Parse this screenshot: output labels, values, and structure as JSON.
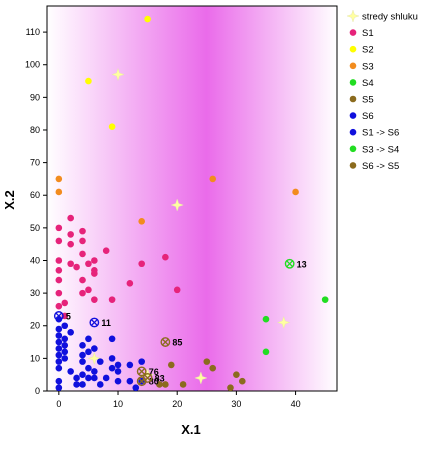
{
  "chart_data": {
    "type": "scatter",
    "title": "",
    "xlabel": "X.1",
    "ylabel": "X.2",
    "xlim": [
      -2,
      47
    ],
    "ylim": [
      0,
      118
    ],
    "x_ticks": [
      0,
      10,
      20,
      30,
      40
    ],
    "y_ticks": [
      0,
      10,
      20,
      30,
      40,
      50,
      60,
      70,
      80,
      90,
      100,
      110
    ],
    "legend_position": "right",
    "background": "magenta gradient",
    "series": [
      {
        "name": "stredy shluku",
        "marker": "star",
        "color": "#ffffa0",
        "points": [
          [
            10,
            97
          ],
          [
            20,
            57
          ],
          [
            38,
            21
          ],
          [
            24,
            4
          ],
          [
            15,
            5
          ],
          [
            6,
            10
          ]
        ]
      },
      {
        "name": "S1",
        "marker": "circle",
        "color": "#e6237a",
        "points": [
          [
            0,
            50
          ],
          [
            0,
            46
          ],
          [
            0,
            40
          ],
          [
            0,
            37
          ],
          [
            0,
            34
          ],
          [
            0,
            30
          ],
          [
            0,
            26
          ],
          [
            1,
            27
          ],
          [
            2,
            53
          ],
          [
            2,
            48
          ],
          [
            2,
            45
          ],
          [
            2,
            39
          ],
          [
            3,
            38
          ],
          [
            4,
            49
          ],
          [
            4,
            46
          ],
          [
            4,
            42
          ],
          [
            4,
            34
          ],
          [
            4,
            30
          ],
          [
            5,
            39
          ],
          [
            5,
            31
          ],
          [
            6,
            40
          ],
          [
            6,
            37
          ],
          [
            6,
            36
          ],
          [
            6,
            28
          ],
          [
            8,
            43
          ],
          [
            9,
            28
          ],
          [
            12,
            33
          ],
          [
            14,
            39
          ],
          [
            18,
            41
          ],
          [
            20,
            31
          ],
          [
            1,
            23
          ]
        ]
      },
      {
        "name": "S2",
        "marker": "circle",
        "color": "#ffff00",
        "points": [
          [
            15,
            114
          ],
          [
            5,
            95
          ],
          [
            9,
            81
          ]
        ]
      },
      {
        "name": "S3",
        "marker": "circle",
        "color": "#f28c1e",
        "points": [
          [
            0,
            65
          ],
          [
            0,
            61
          ],
          [
            14,
            52
          ],
          [
            26,
            65
          ],
          [
            40,
            61
          ]
        ]
      },
      {
        "name": "S4",
        "marker": "circle",
        "color": "#22dd22",
        "points": [
          [
            45,
            28
          ],
          [
            35,
            22
          ],
          [
            35,
            12
          ]
        ]
      },
      {
        "name": "S5",
        "marker": "circle",
        "color": "#8b6b1e",
        "points": [
          [
            17,
            2
          ],
          [
            18,
            2
          ],
          [
            19,
            8
          ],
          [
            21,
            2
          ],
          [
            25,
            9
          ],
          [
            26,
            7
          ],
          [
            29,
            1
          ],
          [
            30,
            5
          ],
          [
            31,
            3
          ]
        ]
      },
      {
        "name": "S6",
        "marker": "circle",
        "color": "#1010dd",
        "points": [
          [
            0,
            22
          ],
          [
            0,
            19
          ],
          [
            0,
            17
          ],
          [
            0,
            15
          ],
          [
            0,
            13
          ],
          [
            0,
            11
          ],
          [
            0,
            9
          ],
          [
            0,
            7
          ],
          [
            0,
            3
          ],
          [
            0,
            1
          ],
          [
            1,
            20
          ],
          [
            1,
            16
          ],
          [
            1,
            14
          ],
          [
            1,
            12
          ],
          [
            1,
            10
          ],
          [
            2,
            18
          ],
          [
            2,
            6
          ],
          [
            3,
            4
          ],
          [
            3,
            2
          ],
          [
            4,
            14
          ],
          [
            4,
            11
          ],
          [
            4,
            9
          ],
          [
            4,
            5
          ],
          [
            4,
            2
          ],
          [
            5,
            16
          ],
          [
            5,
            12
          ],
          [
            5,
            7
          ],
          [
            5,
            4
          ],
          [
            6,
            13
          ],
          [
            6,
            6
          ],
          [
            6,
            4
          ],
          [
            7,
            9
          ],
          [
            7,
            2
          ],
          [
            8,
            4
          ],
          [
            9,
            10
          ],
          [
            9,
            7
          ],
          [
            9,
            16
          ],
          [
            10,
            3
          ],
          [
            10,
            8
          ],
          [
            10,
            6
          ],
          [
            12,
            3
          ],
          [
            12,
            8
          ],
          [
            13,
            1
          ],
          [
            14,
            3
          ],
          [
            14,
            9
          ]
        ]
      },
      {
        "name": "S1  ->  S6",
        "marker": "crossed-circle",
        "color": "#1010dd",
        "points": [
          [
            0,
            23,
            "5"
          ],
          [
            6,
            21,
            "11"
          ]
        ]
      },
      {
        "name": "S3  ->  S4",
        "marker": "crossed-circle",
        "color": "#22dd22",
        "points": [
          [
            39,
            39,
            "13"
          ]
        ]
      },
      {
        "name": "S6  ->  S5",
        "marker": "crossed-circle",
        "color": "#8b6b1e",
        "points": [
          [
            18,
            15,
            "85"
          ],
          [
            14,
            6,
            "76"
          ],
          [
            14,
            3,
            "80"
          ],
          [
            15,
            4,
            "83"
          ]
        ]
      }
    ]
  }
}
